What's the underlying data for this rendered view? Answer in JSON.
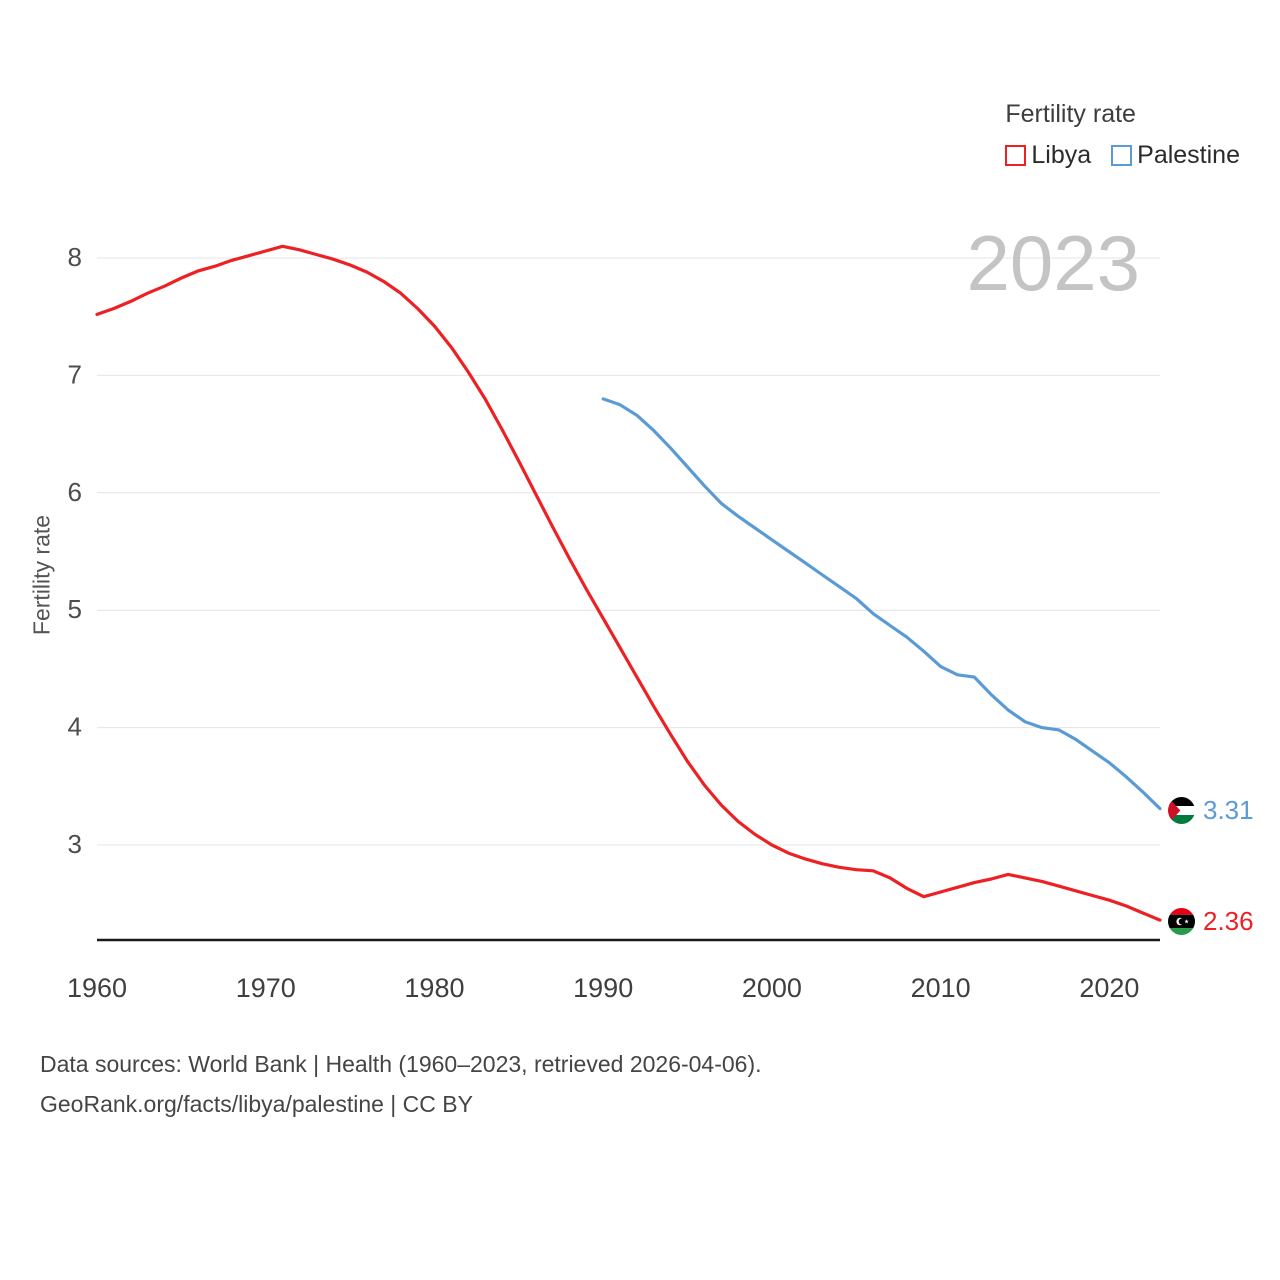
{
  "legend": {
    "title": "Fertility rate",
    "items": [
      {
        "label": "Libya",
        "color": "#ed2024"
      },
      {
        "label": "Palestine",
        "color": "#5b9bd5"
      }
    ]
  },
  "watermark": "2023",
  "end_labels": [
    {
      "country": "Palestine",
      "value": "3.31",
      "color": "#5b9bd5",
      "icon": "palestine-flag-icon"
    },
    {
      "country": "Libya",
      "value": "2.36",
      "color": "#ed2024",
      "icon": "libya-flag-icon"
    }
  ],
  "footer": {
    "line1": "Data sources: World Bank | Health (1960–2023, retrieved 2026-04-06).",
    "line2": "GeoRank.org/facts/libya/palestine | CC BY"
  },
  "chart_data": {
    "type": "line",
    "title": "Fertility rate",
    "xlabel": "",
    "ylabel": "Fertility rate",
    "x_ticks": [
      1960,
      1970,
      1980,
      1990,
      2000,
      2010,
      2020
    ],
    "y_ticks": [
      3,
      4,
      5,
      6,
      7,
      8
    ],
    "xlim": [
      1960,
      2023
    ],
    "ylim": [
      2.19,
      8.45
    ],
    "grid": true,
    "legend_position": "top-right",
    "series": [
      {
        "name": "Libya",
        "color": "#ed2024",
        "x": [
          1960,
          1961,
          1962,
          1963,
          1964,
          1965,
          1966,
          1967,
          1968,
          1969,
          1970,
          1971,
          1972,
          1973,
          1974,
          1975,
          1976,
          1977,
          1978,
          1979,
          1980,
          1981,
          1982,
          1983,
          1984,
          1985,
          1986,
          1987,
          1988,
          1989,
          1990,
          1991,
          1992,
          1993,
          1994,
          1995,
          1996,
          1997,
          1998,
          1999,
          2000,
          2001,
          2002,
          2003,
          2004,
          2005,
          2006,
          2007,
          2008,
          2009,
          2010,
          2011,
          2012,
          2013,
          2014,
          2015,
          2016,
          2017,
          2018,
          2019,
          2020,
          2021,
          2022,
          2023
        ],
        "y": [
          7.52,
          7.57,
          7.63,
          7.7,
          7.76,
          7.83,
          7.89,
          7.93,
          7.98,
          8.02,
          8.06,
          8.1,
          8.07,
          8.03,
          7.99,
          7.94,
          7.88,
          7.8,
          7.7,
          7.57,
          7.42,
          7.24,
          7.03,
          6.8,
          6.54,
          6.27,
          5.99,
          5.71,
          5.44,
          5.18,
          4.93,
          4.68,
          4.43,
          4.18,
          3.94,
          3.71,
          3.51,
          3.34,
          3.2,
          3.09,
          3.0,
          2.93,
          2.88,
          2.84,
          2.81,
          2.79,
          2.78,
          2.72,
          2.63,
          2.56,
          2.6,
          2.64,
          2.68,
          2.71,
          2.75,
          2.72,
          2.69,
          2.65,
          2.61,
          2.57,
          2.53,
          2.48,
          2.42,
          2.36
        ]
      },
      {
        "name": "Palestine",
        "color": "#5b9bd5",
        "x": [
          1990,
          1991,
          1992,
          1993,
          1994,
          1995,
          1996,
          1997,
          1998,
          1999,
          2000,
          2001,
          2002,
          2003,
          2004,
          2005,
          2006,
          2007,
          2008,
          2009,
          2010,
          2011,
          2012,
          2013,
          2014,
          2015,
          2016,
          2017,
          2018,
          2019,
          2020,
          2021,
          2022,
          2023
        ],
        "y": [
          6.8,
          6.75,
          6.66,
          6.53,
          6.38,
          6.22,
          6.06,
          5.91,
          5.8,
          5.7,
          5.6,
          5.5,
          5.4,
          5.3,
          5.2,
          5.1,
          4.97,
          4.87,
          4.77,
          4.65,
          4.52,
          4.45,
          4.43,
          4.28,
          4.15,
          4.05,
          4.0,
          3.98,
          3.9,
          3.8,
          3.7,
          3.58,
          3.45,
          3.31
        ]
      }
    ]
  }
}
